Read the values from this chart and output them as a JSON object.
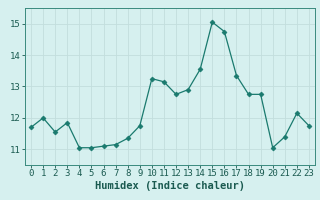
{
  "x": [
    0,
    1,
    2,
    3,
    4,
    5,
    6,
    7,
    8,
    9,
    10,
    11,
    12,
    13,
    14,
    15,
    16,
    17,
    18,
    19,
    20,
    21,
    22,
    23
  ],
  "y": [
    11.7,
    12.0,
    11.55,
    11.85,
    11.05,
    11.05,
    11.1,
    11.15,
    11.35,
    11.75,
    13.25,
    13.15,
    12.75,
    12.9,
    13.55,
    15.05,
    14.75,
    13.35,
    12.75,
    12.75,
    11.05,
    11.4,
    12.15,
    11.75
  ],
  "line_color": "#1a7a6e",
  "marker": "D",
  "marker_size": 2.5,
  "bg_color": "#d6f0ef",
  "grid_color": "#c2dedd",
  "axis_color": "#3a8a7e",
  "tick_color": "#1a5a50",
  "xlabel": "Humidex (Indice chaleur)",
  "xlabel_color": "#1a5a50",
  "ylim": [
    10.5,
    15.5
  ],
  "yticks": [
    11,
    12,
    13,
    14,
    15
  ],
  "xticks": [
    0,
    1,
    2,
    3,
    4,
    5,
    6,
    7,
    8,
    9,
    10,
    11,
    12,
    13,
    14,
    15,
    16,
    17,
    18,
    19,
    20,
    21,
    22,
    23
  ],
  "font_size": 6.5,
  "label_font_size": 7.5
}
